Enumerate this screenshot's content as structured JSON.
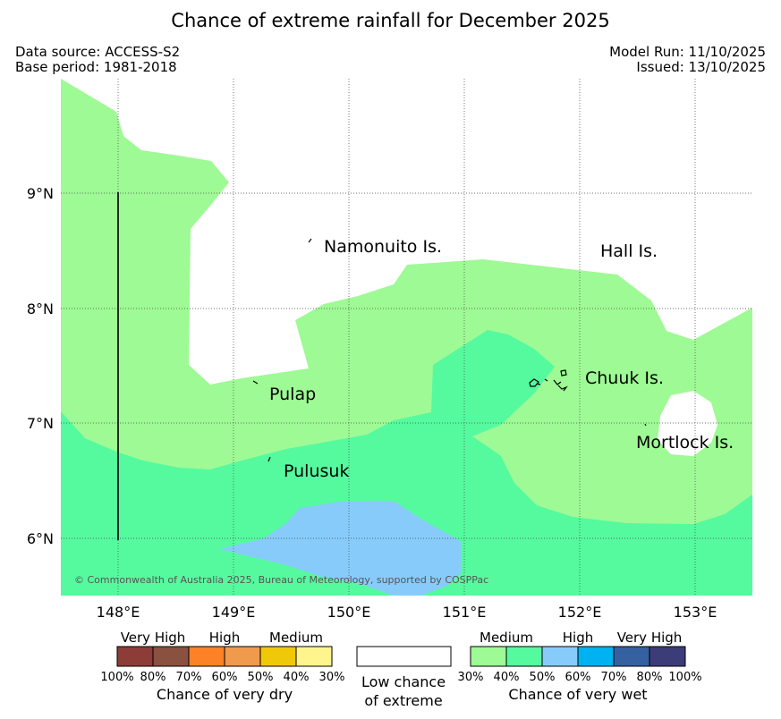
{
  "title": "Chance of extreme rainfall for December 2025",
  "meta": {
    "data_source": "Data source: ACCESS-S2",
    "base_period": "Base period: 1981-2018",
    "model_run": "Model Run: 11/10/2025",
    "issued": "Issued: 13/10/2025"
  },
  "map": {
    "lon_ticks": [
      "148°E",
      "149°E",
      "150°E",
      "151°E",
      "152°E",
      "153°E"
    ],
    "lat_ticks": [
      "9°N",
      "8°N",
      "7°N",
      "6°N"
    ],
    "places": {
      "namonuito": "Namonuito Is.",
      "hall": "Hall Is.",
      "pulap": "Pulap",
      "chuuk": "Chuuk Is.",
      "mortlock": "Mortlock Is.",
      "pulusuk": "Pulusuk"
    },
    "copyright": "© Commonwealth of Australia 2025, Bureau of Meteorology, supported by COSPPac",
    "colors": {
      "wet_30_40": "#9efa94",
      "wet_40_50": "#55fa9f",
      "wet_50_60": "#87cbfa",
      "land_outline": "#000000"
    }
  },
  "legend": {
    "dry": {
      "categories": [
        "Very High",
        "High",
        "Medium"
      ],
      "percents": [
        "100%",
        "80%",
        "70%",
        "60%",
        "50%",
        "40%",
        "30%"
      ],
      "colors": [
        "#8c3d37",
        "#8a5040",
        "#fd8126",
        "#ef9a4c",
        "#f0c80a",
        "#fff58c"
      ],
      "caption": "Chance of very dry"
    },
    "neutral": {
      "line1": "Low chance",
      "line2": "of extreme"
    },
    "wet": {
      "categories": [
        "Medium",
        "High",
        "Very High"
      ],
      "percents": [
        "30%",
        "40%",
        "50%",
        "60%",
        "70%",
        "80%",
        "100%"
      ],
      "colors": [
        "#9efa94",
        "#55fa9f",
        "#87cbfa",
        "#00b2f0",
        "#3561a0",
        "#3c3c78"
      ],
      "caption": "Chance of very wet"
    }
  }
}
